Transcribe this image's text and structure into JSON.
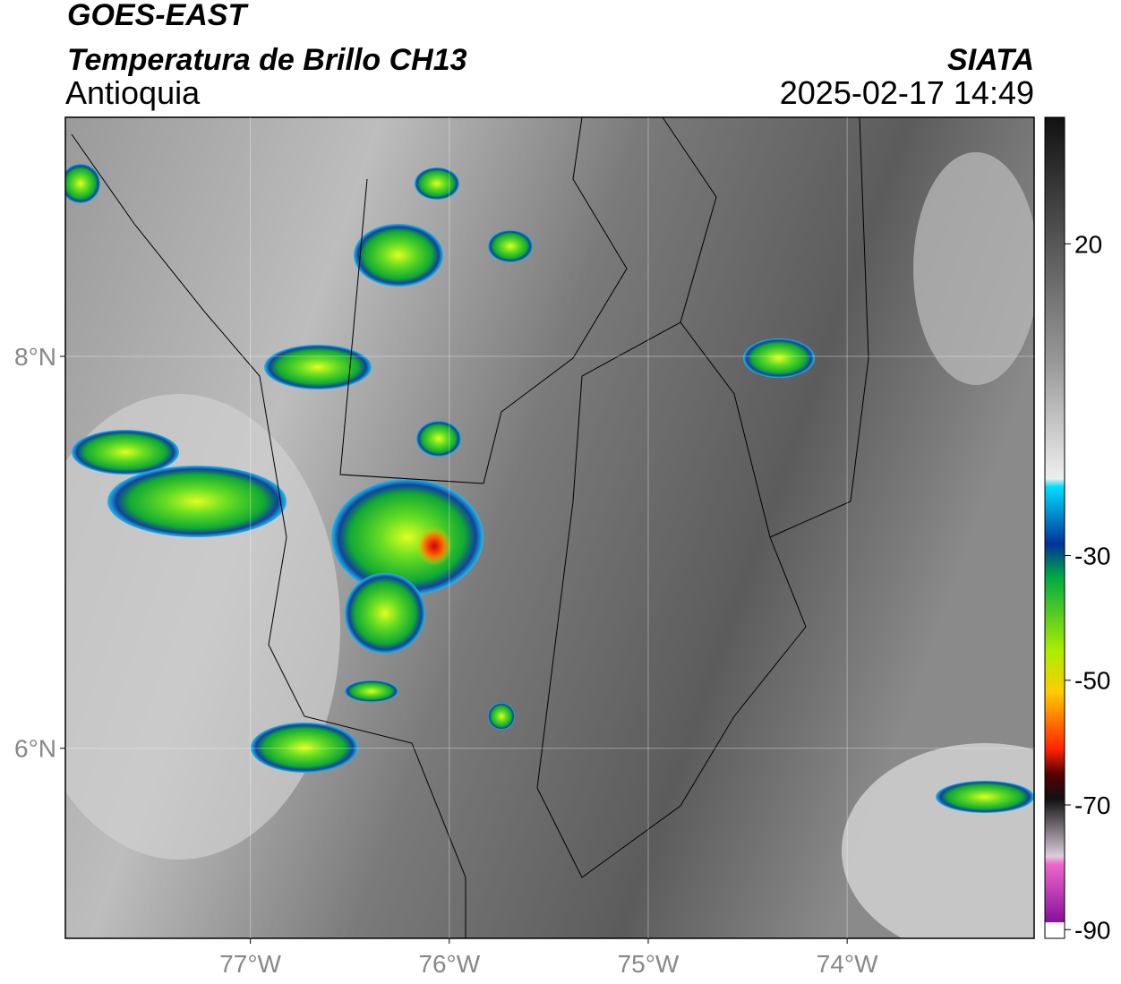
{
  "header": {
    "title": "GOES-EAST",
    "subtitle": "Temperatura de Brillo CH13",
    "region": "Antioquia",
    "source": "SIATA",
    "timestamp": "2025-02-17 14:49"
  },
  "map": {
    "lonlim": [
      -77.93,
      -73.06
    ],
    "latlim": [
      5.03,
      9.22
    ],
    "lonticks": [
      {
        "value": -77,
        "label": "77°W"
      },
      {
        "value": -76,
        "label": "76°W"
      },
      {
        "value": -75,
        "label": "75°W"
      },
      {
        "value": -74,
        "label": "74°W"
      }
    ],
    "latticks": [
      {
        "value": 8,
        "label": "8°N"
      },
      {
        "value": 6,
        "label": "6°N"
      }
    ],
    "grid": true
  },
  "colorbar": {
    "lim": [
      -91.4,
      40.3
    ],
    "ticks": [
      20,
      -30,
      -50,
      -70,
      -90
    ]
  }
}
